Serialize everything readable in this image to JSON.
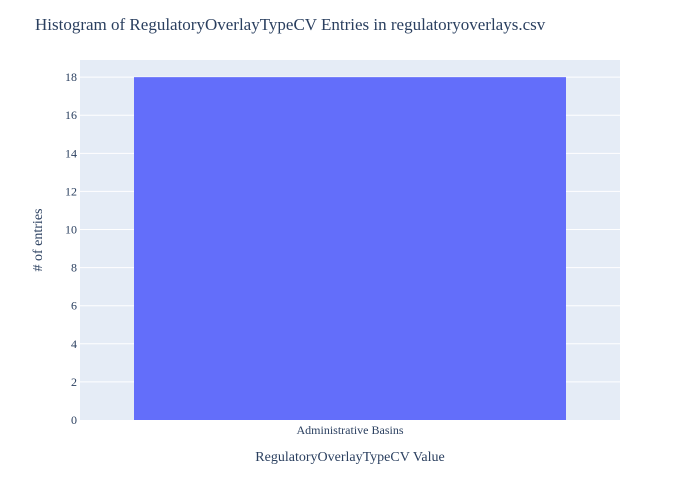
{
  "chart_data": {
    "type": "bar",
    "title": "Histogram of RegulatoryOverlayTypeCV Entries in regulatoryoverlays.csv",
    "xlabel": "RegulatoryOverlayTypeCV Value",
    "ylabel": "# of entries",
    "categories": [
      "Administrative Basins"
    ],
    "values": [
      18
    ],
    "ylim": [
      0,
      18.9
    ],
    "yticks": [
      0,
      2,
      4,
      6,
      8,
      10,
      12,
      14,
      16,
      18
    ],
    "grid": true,
    "legend": "none",
    "colors": {
      "bar": "#636efa",
      "plot_background": "#e5ecf6",
      "grid": "#ffffff",
      "text": "#2a3f5f"
    }
  }
}
